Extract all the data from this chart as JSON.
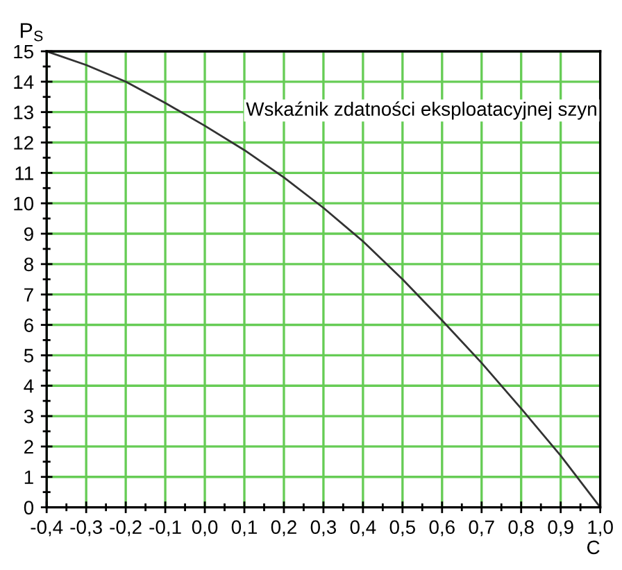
{
  "chart_data": {
    "type": "line",
    "xlabel": "C",
    "ylabel": "P$_{S}$",
    "annotations": [
      "Wskaźnik zdatności eksploatacyjnej szyn"
    ],
    "x": [
      -0.4,
      -0.3,
      -0.2,
      -0.1,
      0.0,
      0.1,
      0.2,
      0.3,
      0.4,
      0.5,
      0.6,
      0.7,
      0.8,
      0.9,
      1.0
    ],
    "series": [
      {
        "color": "#333333",
        "values": [
          15,
          14.55,
          14.0,
          13.3,
          12.55,
          11.75,
          10.85,
          9.85,
          8.75,
          7.5,
          6.15,
          4.75,
          3.25,
          1.7,
          0
        ]
      }
    ],
    "xlim": [
      -0.4,
      1.0
    ],
    "ylim": [
      0,
      15
    ],
    "xticks": [
      {
        "value": -0.4,
        "label": "-0,4"
      },
      {
        "value": -0.3,
        "label": "-0,3"
      },
      {
        "value": -0.2,
        "label": "-0,2"
      },
      {
        "value": -0.1,
        "label": "-0,1"
      },
      {
        "value": 0.0,
        "label": "0,0"
      },
      {
        "value": 0.1,
        "label": "0,1"
      },
      {
        "value": 0.2,
        "label": "0,2"
      },
      {
        "value": 0.3,
        "label": "0,3"
      },
      {
        "value": 0.4,
        "label": "0,4"
      },
      {
        "value": 0.5,
        "label": "0,5"
      },
      {
        "value": 0.6,
        "label": "0,6"
      },
      {
        "value": 0.7,
        "label": "0,7"
      },
      {
        "value": 0.8,
        "label": "0,8"
      },
      {
        "value": 0.9,
        "label": "0,9"
      },
      {
        "value": 1.0,
        "label": "1,0"
      }
    ],
    "yticks": [
      0,
      1,
      2,
      3,
      4,
      5,
      6,
      7,
      8,
      9,
      10,
      11,
      12,
      13,
      14,
      15
    ],
    "grid": true,
    "line_style": "solid",
    "marker": "none",
    "legend": false
  }
}
